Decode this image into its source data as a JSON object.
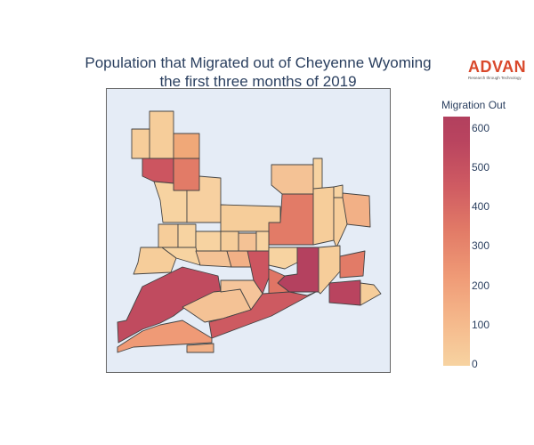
{
  "title_line1": "Population that Migrated out of Cheyenne Wyoming",
  "title_line2": "the first three months of 2019",
  "logo": {
    "name": "ADVAN",
    "tagline": "Research through Technology",
    "color": "#d9482b"
  },
  "colorbar": {
    "title": "Migration Out",
    "ticks": [
      "600",
      "500",
      "400",
      "300",
      "200",
      "100",
      "0"
    ],
    "range": [
      0,
      630
    ],
    "colorscale": [
      "#f7d3a1",
      "#f5b88b",
      "#ef9a76",
      "#e27b67",
      "#cf5b62",
      "#b9445f",
      "#b2405e"
    ]
  },
  "map": {
    "background": "#e5ecf6",
    "tract_border_color": "#444444",
    "tract_count": 37
  }
}
